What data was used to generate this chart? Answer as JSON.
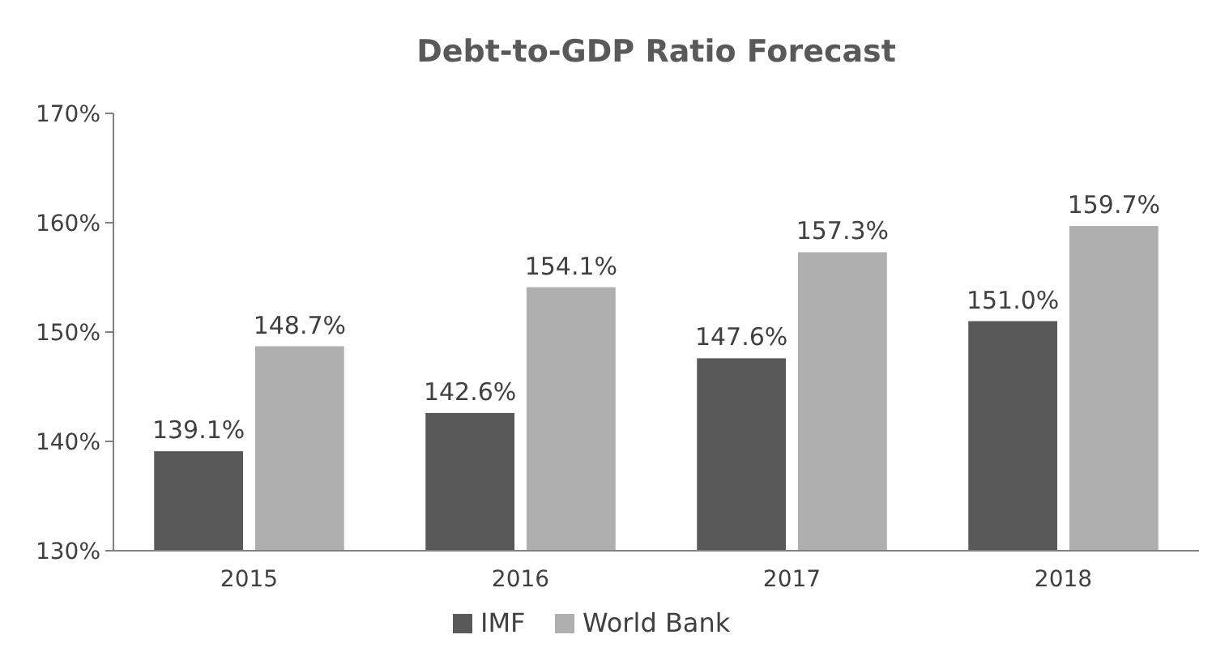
{
  "chart_data": {
    "type": "bar",
    "title": "Debt-to-GDP Ratio Forecast",
    "categories": [
      "2015",
      "2016",
      "2017",
      "2018"
    ],
    "series": [
      {
        "name": "IMF",
        "color": "#595959",
        "values": [
          139.1,
          142.6,
          147.6,
          151.0
        ],
        "value_labels": [
          "139.1%",
          "142.6%",
          "147.6%",
          "151.0%"
        ]
      },
      {
        "name": "World Bank",
        "color": "#afafaf",
        "values": [
          148.7,
          154.1,
          157.3,
          159.7
        ],
        "value_labels": [
          "148.7%",
          "154.1%",
          "157.3%",
          "159.7%"
        ]
      }
    ],
    "ylim": [
      130,
      170
    ],
    "yticks": [
      {
        "value": 130,
        "label": "130%"
      },
      {
        "value": 140,
        "label": "140%"
      },
      {
        "value": 150,
        "label": "150%"
      },
      {
        "value": 160,
        "label": "160%"
      },
      {
        "value": 170,
        "label": "170%"
      }
    ],
    "grid": false,
    "legend": "bottom"
  }
}
